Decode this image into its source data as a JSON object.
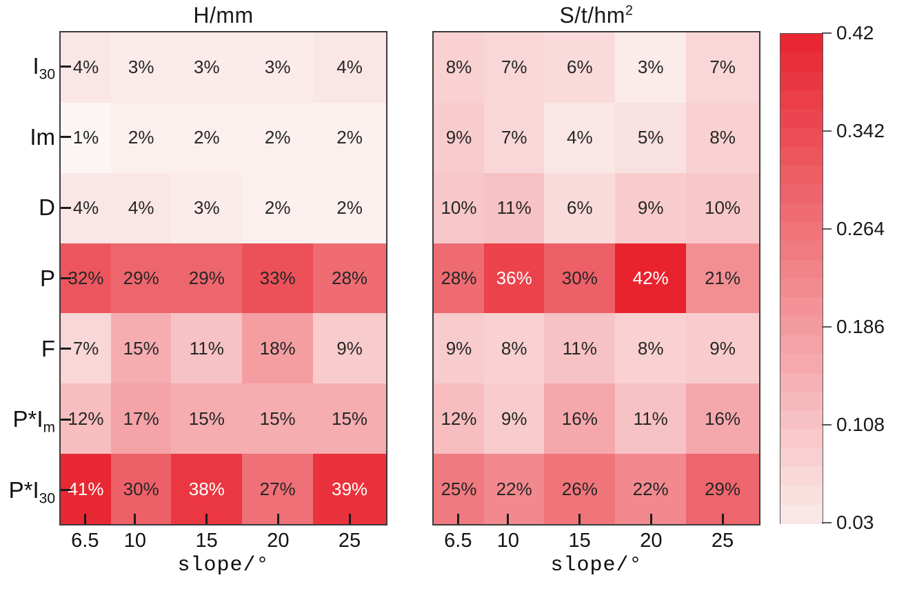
{
  "figure_background": "#ffffff",
  "chart_data": {
    "type": "heatmap",
    "description": "Two red-scale heatmaps of contribution percentages by factor and slope, sharing one colorbar",
    "xlabel": "slope/°",
    "columns": [
      "6.5",
      "10",
      "15",
      "20",
      "25"
    ],
    "column_values": [
      6.5,
      10,
      15,
      20,
      25
    ],
    "x_range": [
      4.7,
      27.65
    ],
    "row_labels": [
      {
        "text": "I",
        "sub": "30"
      },
      {
        "text": "Im",
        "sub": ""
      },
      {
        "text": "D",
        "sub": ""
      },
      {
        "text": "P",
        "sub": ""
      },
      {
        "text": "F",
        "sub": ""
      },
      {
        "text": "P*I",
        "sub": "m"
      },
      {
        "text": "P*I",
        "sub": "30"
      }
    ],
    "panels": [
      {
        "title": {
          "text": "H/mm",
          "sup": ""
        },
        "values_percent": [
          [
            4,
            3,
            3,
            3,
            4
          ],
          [
            1,
            2,
            2,
            2,
            2
          ],
          [
            4,
            4,
            3,
            2,
            2
          ],
          [
            32,
            29,
            29,
            33,
            28
          ],
          [
            7,
            15,
            11,
            18,
            9
          ],
          [
            12,
            17,
            15,
            15,
            15
          ],
          [
            41,
            30,
            38,
            27,
            39
          ]
        ],
        "has_left_ticks": true
      },
      {
        "title": {
          "text": "S/t/hm",
          "sup": "2"
        },
        "values_percent": [
          [
            8,
            7,
            6,
            3,
            7
          ],
          [
            9,
            7,
            4,
            5,
            8
          ],
          [
            10,
            11,
            6,
            9,
            10
          ],
          [
            28,
            36,
            30,
            42,
            21
          ],
          [
            9,
            8,
            11,
            8,
            9
          ],
          [
            12,
            9,
            16,
            11,
            16
          ],
          [
            25,
            22,
            26,
            22,
            29
          ]
        ],
        "has_left_ticks": false
      }
    ],
    "value_suffix": "%",
    "colorbar": {
      "min": 0.03,
      "max": 0.42,
      "tick_labels": [
        "0.42",
        "0.342",
        "0.264",
        "0.186",
        "0.108",
        "0.03"
      ],
      "tick_values": [
        0.42,
        0.342,
        0.264,
        0.186,
        0.108,
        0.03
      ],
      "steps": 26
    },
    "colormap": {
      "low": "#fcf5f4",
      "high": "#e8232e",
      "domain": [
        0.01,
        0.42
      ]
    },
    "white_text_threshold": 35,
    "colors": {
      "cell_text_dark": "#262626",
      "cell_text_light": "#ffffff",
      "plot_border": "#3b3b3b",
      "tick": "#1c1c1c",
      "colorbar_border": "#555555",
      "axis_text": "#111111"
    }
  }
}
